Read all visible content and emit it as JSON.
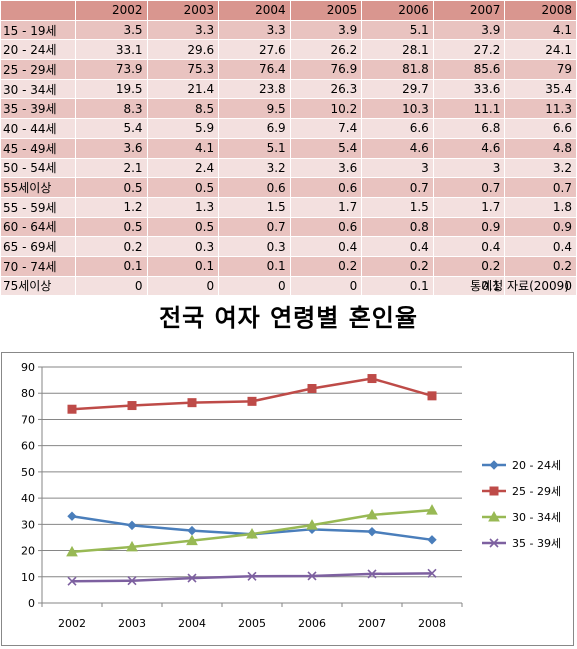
{
  "table": {
    "headers": [
      "",
      "2002",
      "2003",
      "2004",
      "2005",
      "2006",
      "2007",
      "2008"
    ],
    "rows": [
      {
        "label": "15 - 19세",
        "values": [
          "3.5",
          "3.3",
          "3.3",
          "3.9",
          "5.1",
          "3.9",
          "4.1"
        ]
      },
      {
        "label": "20 - 24세",
        "values": [
          "33.1",
          "29.6",
          "27.6",
          "26.2",
          "28.1",
          "27.2",
          "24.1"
        ]
      },
      {
        "label": "25 - 29세",
        "values": [
          "73.9",
          "75.3",
          "76.4",
          "76.9",
          "81.8",
          "85.6",
          "79"
        ]
      },
      {
        "label": "30 - 34세",
        "values": [
          "19.5",
          "21.4",
          "23.8",
          "26.3",
          "29.7",
          "33.6",
          "35.4"
        ]
      },
      {
        "label": "35 - 39세",
        "values": [
          "8.3",
          "8.5",
          "9.5",
          "10.2",
          "10.3",
          "11.1",
          "11.3"
        ]
      },
      {
        "label": "40 - 44세",
        "values": [
          "5.4",
          "5.9",
          "6.9",
          "7.4",
          "6.6",
          "6.8",
          "6.6"
        ]
      },
      {
        "label": "45 - 49세",
        "values": [
          "3.6",
          "4.1",
          "5.1",
          "5.4",
          "4.6",
          "4.6",
          "4.8"
        ]
      },
      {
        "label": "50 - 54세",
        "values": [
          "2.1",
          "2.4",
          "3.2",
          "3.6",
          "3",
          "3",
          "3.2"
        ]
      },
      {
        "label": "55세이상",
        "values": [
          "0.5",
          "0.5",
          "0.6",
          "0.6",
          "0.7",
          "0.7",
          "0.7"
        ]
      },
      {
        "label": "55 - 59세",
        "values": [
          "1.2",
          "1.3",
          "1.5",
          "1.7",
          "1.5",
          "1.7",
          "1.8"
        ]
      },
      {
        "label": "60 - 64세",
        "values": [
          "0.5",
          "0.5",
          "0.7",
          "0.6",
          "0.8",
          "0.9",
          "0.9"
        ]
      },
      {
        "label": "65 - 69세",
        "values": [
          "0.2",
          "0.3",
          "0.3",
          "0.4",
          "0.4",
          "0.4",
          "0.4"
        ]
      },
      {
        "label": "70 - 74세",
        "values": [
          "0.1",
          "0.1",
          "0.1",
          "0.2",
          "0.2",
          "0.2",
          "0.2"
        ]
      },
      {
        "label": "75세이상",
        "values": [
          "0",
          "0",
          "0",
          "0",
          "0.1",
          "0.1",
          "0"
        ]
      }
    ]
  },
  "source_note": "통계청 자료(2009)",
  "title": "전국 여자 연령별 혼인율",
  "chart_data": {
    "type": "line",
    "title": "전국 여자 연령별 혼인율",
    "x": [
      "2002",
      "2003",
      "2004",
      "2005",
      "2006",
      "2007",
      "2008"
    ],
    "ylim": [
      0,
      90
    ],
    "yticks": [
      0,
      10,
      20,
      30,
      40,
      50,
      60,
      70,
      80,
      90
    ],
    "grid": true,
    "legend_position": "right",
    "series": [
      {
        "name": "20 - 24세",
        "values": [
          33.1,
          29.6,
          27.6,
          26.2,
          28.1,
          27.2,
          24.1
        ],
        "color": "#4a7ebb",
        "marker": "diamond"
      },
      {
        "name": "25 - 29세",
        "values": [
          73.9,
          75.3,
          76.4,
          76.9,
          81.8,
          85.6,
          79
        ],
        "color": "#be4b48",
        "marker": "square"
      },
      {
        "name": "30 - 34세",
        "values": [
          19.5,
          21.4,
          23.8,
          26.3,
          29.7,
          33.6,
          35.4
        ],
        "color": "#98b954",
        "marker": "triangle"
      },
      {
        "name": "35 - 39세",
        "values": [
          8.3,
          8.5,
          9.5,
          10.2,
          10.3,
          11.1,
          11.3
        ],
        "color": "#7d60a0",
        "marker": "x"
      }
    ]
  },
  "colors": {
    "header_bg": "#d9968f",
    "row_dark": "#e9c3c0",
    "row_light": "#f3e0df"
  }
}
